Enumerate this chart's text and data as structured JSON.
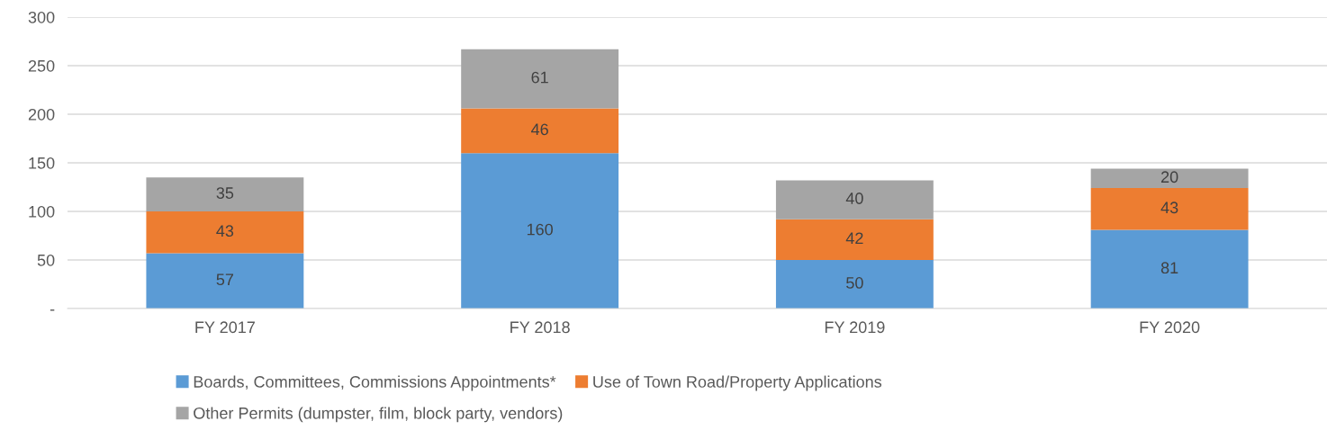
{
  "chart_data": {
    "type": "bar",
    "stacked": true,
    "categories": [
      "FY 2017",
      "FY 2018",
      "FY 2019",
      "FY 2020"
    ],
    "series": [
      {
        "name": "Boards, Committees, Commissions Appointments*",
        "color": "#5b9bd5",
        "values": [
          57,
          160,
          50,
          81
        ]
      },
      {
        "name": "Use of Town Road/Property Applications",
        "color": "#ed7d31",
        "values": [
          43,
          46,
          42,
          43
        ]
      },
      {
        "name": "Other Permits (dumpster, film, block party, vendors)",
        "color": "#a5a5a5",
        "values": [
          35,
          61,
          40,
          20
        ]
      }
    ],
    "ylim": [
      0,
      300
    ],
    "yticks": [
      {
        "value": 0,
        "label": "-"
      },
      50,
      100,
      150,
      200,
      250,
      300
    ],
    "grid": "y",
    "legend": "bottom",
    "data_labels": true
  }
}
